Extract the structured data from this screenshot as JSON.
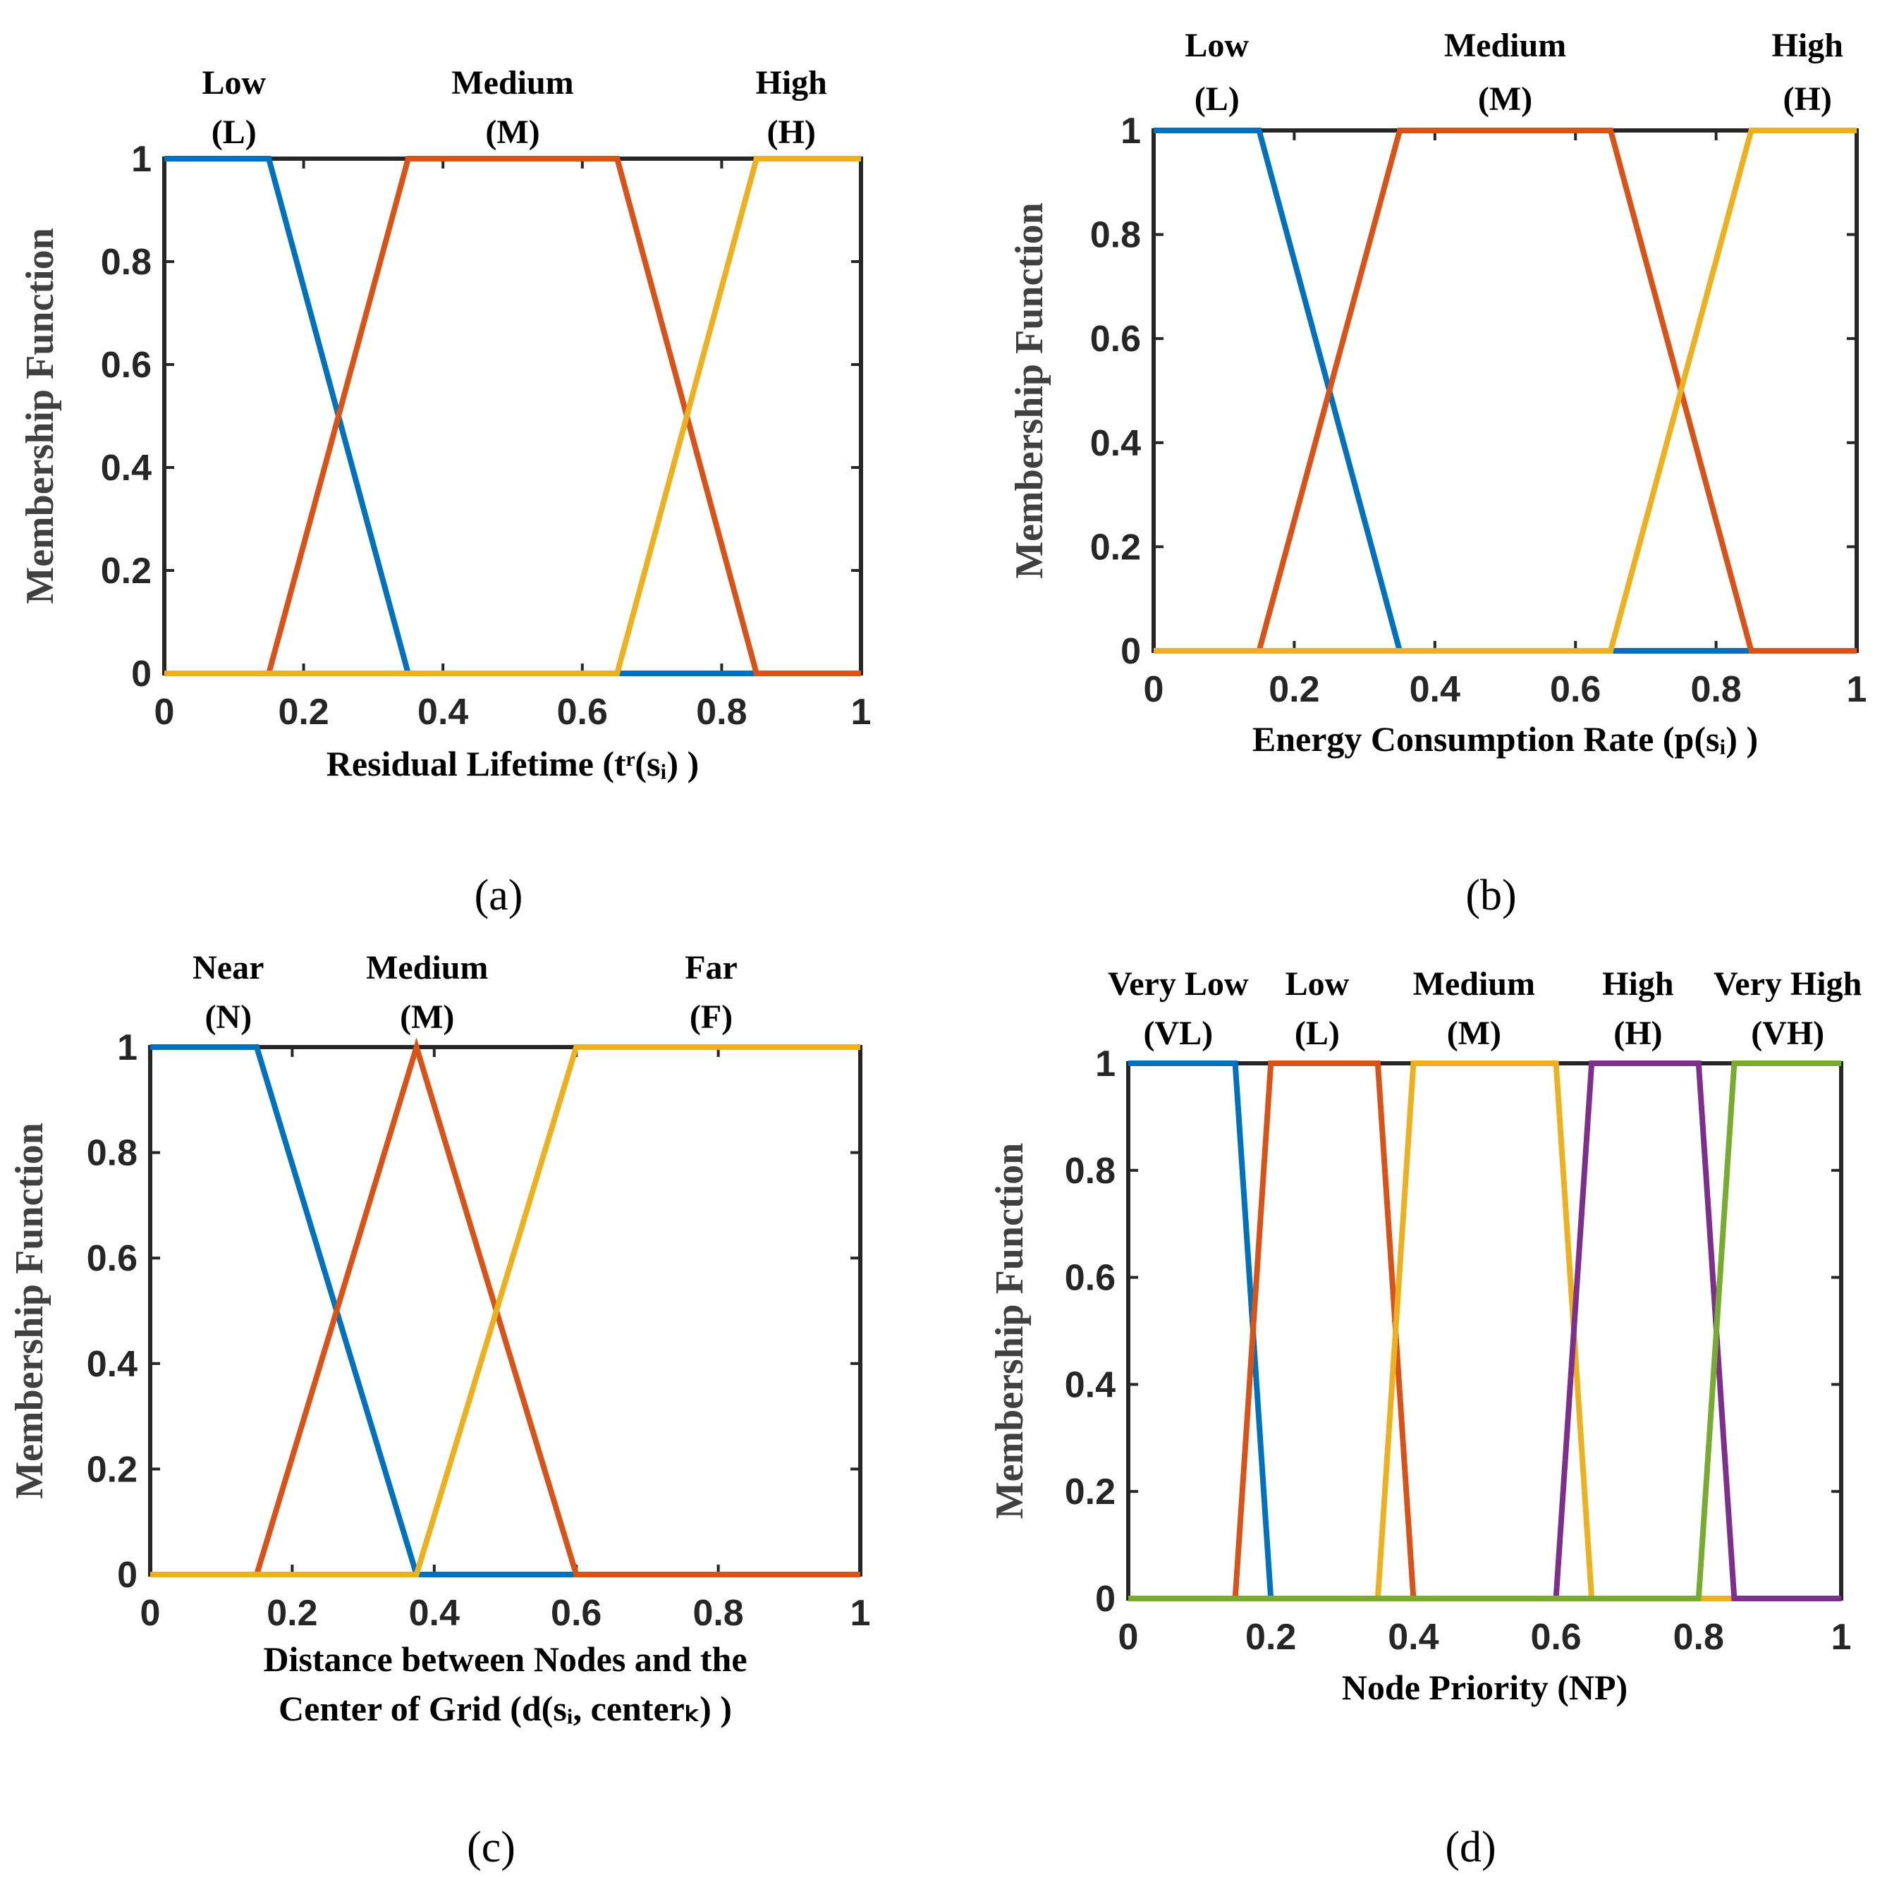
{
  "colors": {
    "blue": "#0072BD",
    "red": "#D95319",
    "yellow": "#EDB120",
    "purple": "#7E2F8E",
    "green": "#77AC30",
    "axis": "#262626"
  },
  "chart_data": [
    {
      "panel_label": "(a)",
      "type": "line",
      "title": "",
      "ylabel": "Membership Function",
      "xlabel": "Residual Lifetime (tʳ(sᵢ) )",
      "xlim": [
        0,
        1
      ],
      "ylim": [
        0,
        1
      ],
      "xticks": [
        "0",
        "0.2",
        "0.4",
        "0.6",
        "0.8",
        "1"
      ],
      "yticks": [
        "0",
        "0.2",
        "0.4",
        "0.6",
        "0.8",
        "1"
      ],
      "series": [
        {
          "name": "Low",
          "abbr": "(L)",
          "label_x": 0.1,
          "color": "blue",
          "x": [
            0,
            0.15,
            0.35,
            1
          ],
          "y": [
            1,
            1,
            0,
            0
          ]
        },
        {
          "name": "Medium",
          "abbr": "(M)",
          "label_x": 0.5,
          "color": "red",
          "x": [
            0,
            0.15,
            0.35,
            0.65,
            0.85,
            1
          ],
          "y": [
            0,
            0,
            1,
            1,
            0,
            0
          ]
        },
        {
          "name": "High",
          "abbr": "(H)",
          "label_x": 0.9,
          "color": "yellow",
          "x": [
            0,
            0.65,
            0.85,
            1
          ],
          "y": [
            0,
            0,
            1,
            1
          ]
        }
      ]
    },
    {
      "panel_label": "(b)",
      "type": "line",
      "title": "",
      "ylabel": "Membership Function",
      "xlabel": "Energy Consumption Rate  (p(sᵢ) )",
      "xlim": [
        0,
        1
      ],
      "ylim": [
        0,
        1
      ],
      "xticks": [
        "0",
        "0.2",
        "0.4",
        "0.6",
        "0.8",
        "1"
      ],
      "yticks": [
        "0",
        "0.2",
        "0.4",
        "0.6",
        "0.8",
        "1"
      ],
      "series": [
        {
          "name": "Low",
          "abbr": "(L)",
          "label_x": 0.09,
          "color": "blue",
          "x": [
            0,
            0.15,
            0.35,
            1
          ],
          "y": [
            1,
            1,
            0,
            0
          ]
        },
        {
          "name": "Medium",
          "abbr": "(M)",
          "label_x": 0.5,
          "color": "red",
          "x": [
            0,
            0.15,
            0.35,
            0.65,
            0.85,
            1
          ],
          "y": [
            0,
            0,
            1,
            1,
            0,
            0
          ]
        },
        {
          "name": "High",
          "abbr": "(H)",
          "label_x": 0.93,
          "color": "yellow",
          "x": [
            0,
            0.65,
            0.85,
            1
          ],
          "y": [
            0,
            0,
            1,
            1
          ]
        }
      ]
    },
    {
      "panel_label": "(c)",
      "type": "line",
      "title": "",
      "ylabel": "Membership Function",
      "xlabel": "Distance between Nodes and the",
      "xlabel2": "Center of Grid (d(sᵢ, centerₖ) )",
      "xlim": [
        0,
        1
      ],
      "ylim": [
        0,
        1
      ],
      "xticks": [
        "0",
        "0.2",
        "0.4",
        "0.6",
        "0.8",
        "1"
      ],
      "yticks": [
        "0",
        "0.2",
        "0.4",
        "0.6",
        "0.8",
        "1"
      ],
      "series": [
        {
          "name": "Near",
          "abbr": "(N)",
          "label_x": 0.11,
          "color": "blue",
          "x": [
            0,
            0.15,
            0.375,
            1
          ],
          "y": [
            1,
            1,
            0,
            0
          ]
        },
        {
          "name": "Medium",
          "abbr": "(M)",
          "label_x": 0.39,
          "color": "red",
          "x": [
            0,
            0.15,
            0.375,
            0.6,
            1
          ],
          "y": [
            0,
            0,
            1,
            0,
            0
          ]
        },
        {
          "name": "Far",
          "abbr": "(F)",
          "label_x": 0.79,
          "color": "yellow",
          "x": [
            0,
            0.375,
            0.6,
            1
          ],
          "y": [
            0,
            0,
            1,
            1
          ]
        }
      ]
    },
    {
      "panel_label": "(d)",
      "type": "line",
      "title": "",
      "ylabel": "Membership Function",
      "xlabel": "Node Priority (NP)",
      "xlim": [
        0,
        1
      ],
      "ylim": [
        0,
        1
      ],
      "xticks": [
        "0",
        "0.2",
        "0.4",
        "0.6",
        "0.8",
        "1"
      ],
      "yticks": [
        "0",
        "0.2",
        "0.4",
        "0.6",
        "0.8",
        "1"
      ],
      "series": [
        {
          "name": "Very Low",
          "abbr": "(VL)",
          "label_x": 0.07,
          "color": "blue",
          "x": [
            0,
            0.15,
            0.2,
            1
          ],
          "y": [
            1,
            1,
            0,
            0
          ]
        },
        {
          "name": "Low",
          "abbr": "(L)",
          "label_x": 0.265,
          "color": "red",
          "x": [
            0,
            0.15,
            0.2,
            0.35,
            0.4,
            1
          ],
          "y": [
            0,
            0,
            1,
            1,
            0,
            0
          ]
        },
        {
          "name": "Medium",
          "abbr": "(M)",
          "label_x": 0.485,
          "color": "yellow",
          "x": [
            0,
            0.35,
            0.4,
            0.6,
            0.65,
            1
          ],
          "y": [
            0,
            0,
            1,
            1,
            0,
            0
          ]
        },
        {
          "name": "High",
          "abbr": "(H)",
          "label_x": 0.715,
          "color": "purple",
          "x": [
            0,
            0.6,
            0.65,
            0.8,
            0.85,
            1
          ],
          "y": [
            0,
            0,
            1,
            1,
            0,
            0
          ]
        },
        {
          "name": "Very High",
          "abbr": "(VH)",
          "label_x": 0.925,
          "color": "green",
          "x": [
            0,
            0.8,
            0.85,
            1
          ],
          "y": [
            0,
            0,
            1,
            1
          ]
        }
      ]
    }
  ]
}
